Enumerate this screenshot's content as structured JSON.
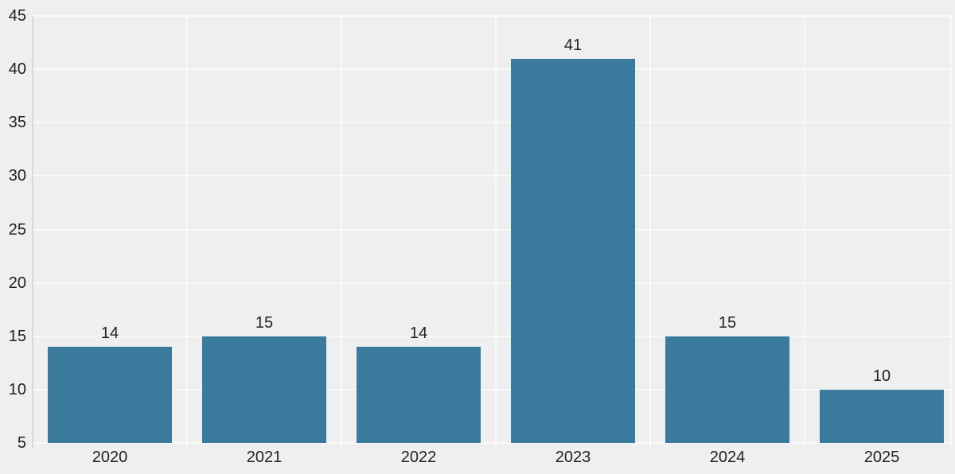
{
  "chart_data": {
    "type": "bar",
    "title": "",
    "xlabel": "",
    "ylabel": "",
    "categories": [
      "2020",
      "2021",
      "2022",
      "2023",
      "2024",
      "2025"
    ],
    "values": [
      14,
      15,
      14,
      41,
      15,
      10
    ],
    "value_labels": [
      "14",
      "15",
      "14",
      "41",
      "15",
      "10"
    ],
    "y_ticks": [
      5,
      10,
      15,
      20,
      25,
      30,
      35,
      40,
      45
    ],
    "y_tick_labels": [
      "5",
      "10",
      "15",
      "20",
      "25",
      "30",
      "35",
      "40",
      "45"
    ],
    "ylim": [
      5,
      45
    ],
    "grid": "on",
    "legend": "none",
    "colors": {
      "bar": "#3a7a9c",
      "background": "#efefef",
      "gridline": "rgba(255,255,255,0.55)",
      "axis_line": "#d8d8d8",
      "text": "#222222"
    }
  }
}
